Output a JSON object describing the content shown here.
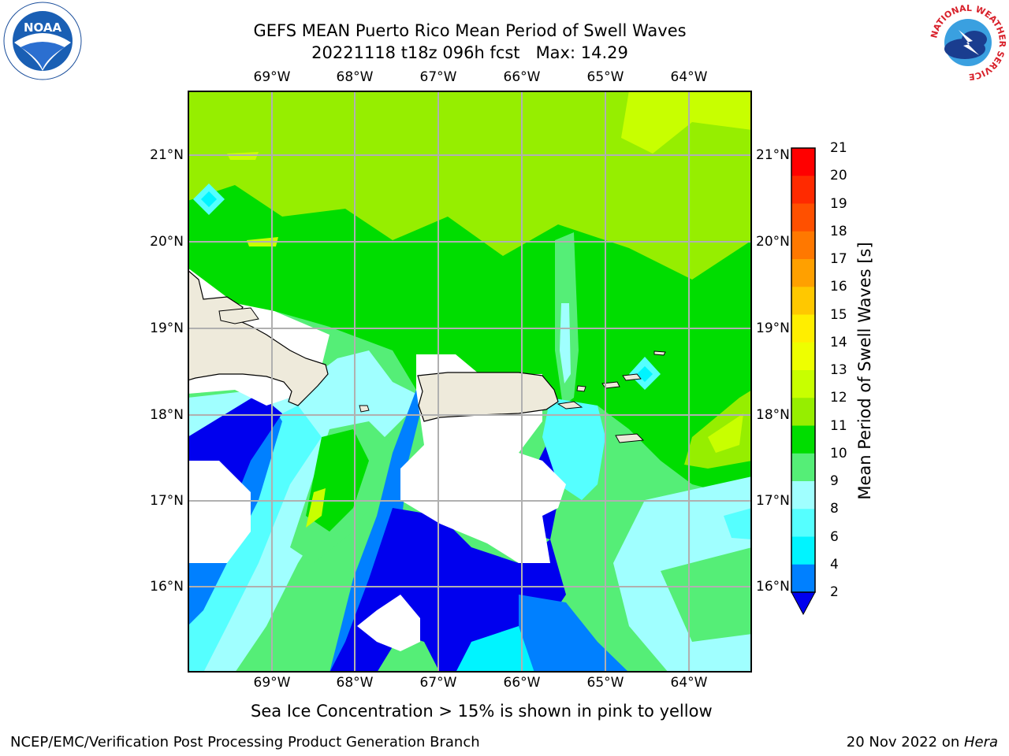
{
  "header": {
    "title_line1": "GEFS MEAN Puerto Rico Mean Period of Swell Waves",
    "title_line2": "20221118 t18z 096h fcst   Max: 14.29"
  },
  "logos": {
    "left": "NOAA",
    "right_ring": "NATIONAL WEATHER SERVICE"
  },
  "axes": {
    "lon_labels": [
      "69°W",
      "68°W",
      "67°W",
      "66°W",
      "65°W",
      "64°W"
    ],
    "lat_labels": [
      "21°N",
      "20°N",
      "19°N",
      "18°N",
      "17°N",
      "16°N"
    ]
  },
  "colorbar": {
    "label": "Mean Period of Swell Waves [s]",
    "ticks": [
      "21",
      "20",
      "19",
      "18",
      "17",
      "16",
      "15",
      "14",
      "13",
      "12",
      "11",
      "10",
      "9",
      "8",
      "6",
      "4",
      "2"
    ],
    "colors": [
      "#ff0000",
      "#ff2a00",
      "#ff5000",
      "#ff7800",
      "#ffa000",
      "#ffc800",
      "#ffee00",
      "#eeff00",
      "#c8ff00",
      "#96ee00",
      "#00dd00",
      "#55ee77",
      "#a0ffff",
      "#55ffff",
      "#00f4ff",
      "#0080ff",
      "#0000ee"
    ]
  },
  "map_colors": {
    "land": "#eeeadb",
    "sea_ice_free_missing": "#ffffff",
    "grid": "#b0b0b0"
  },
  "note": "Sea Ice Concentration > 15% is shown in pink to yellow",
  "footer": {
    "left": "NCEP/EMC/Verification Post Processing Product Generation Branch",
    "right_date": "20 Nov 2022 on ",
    "right_host": "Hera"
  }
}
